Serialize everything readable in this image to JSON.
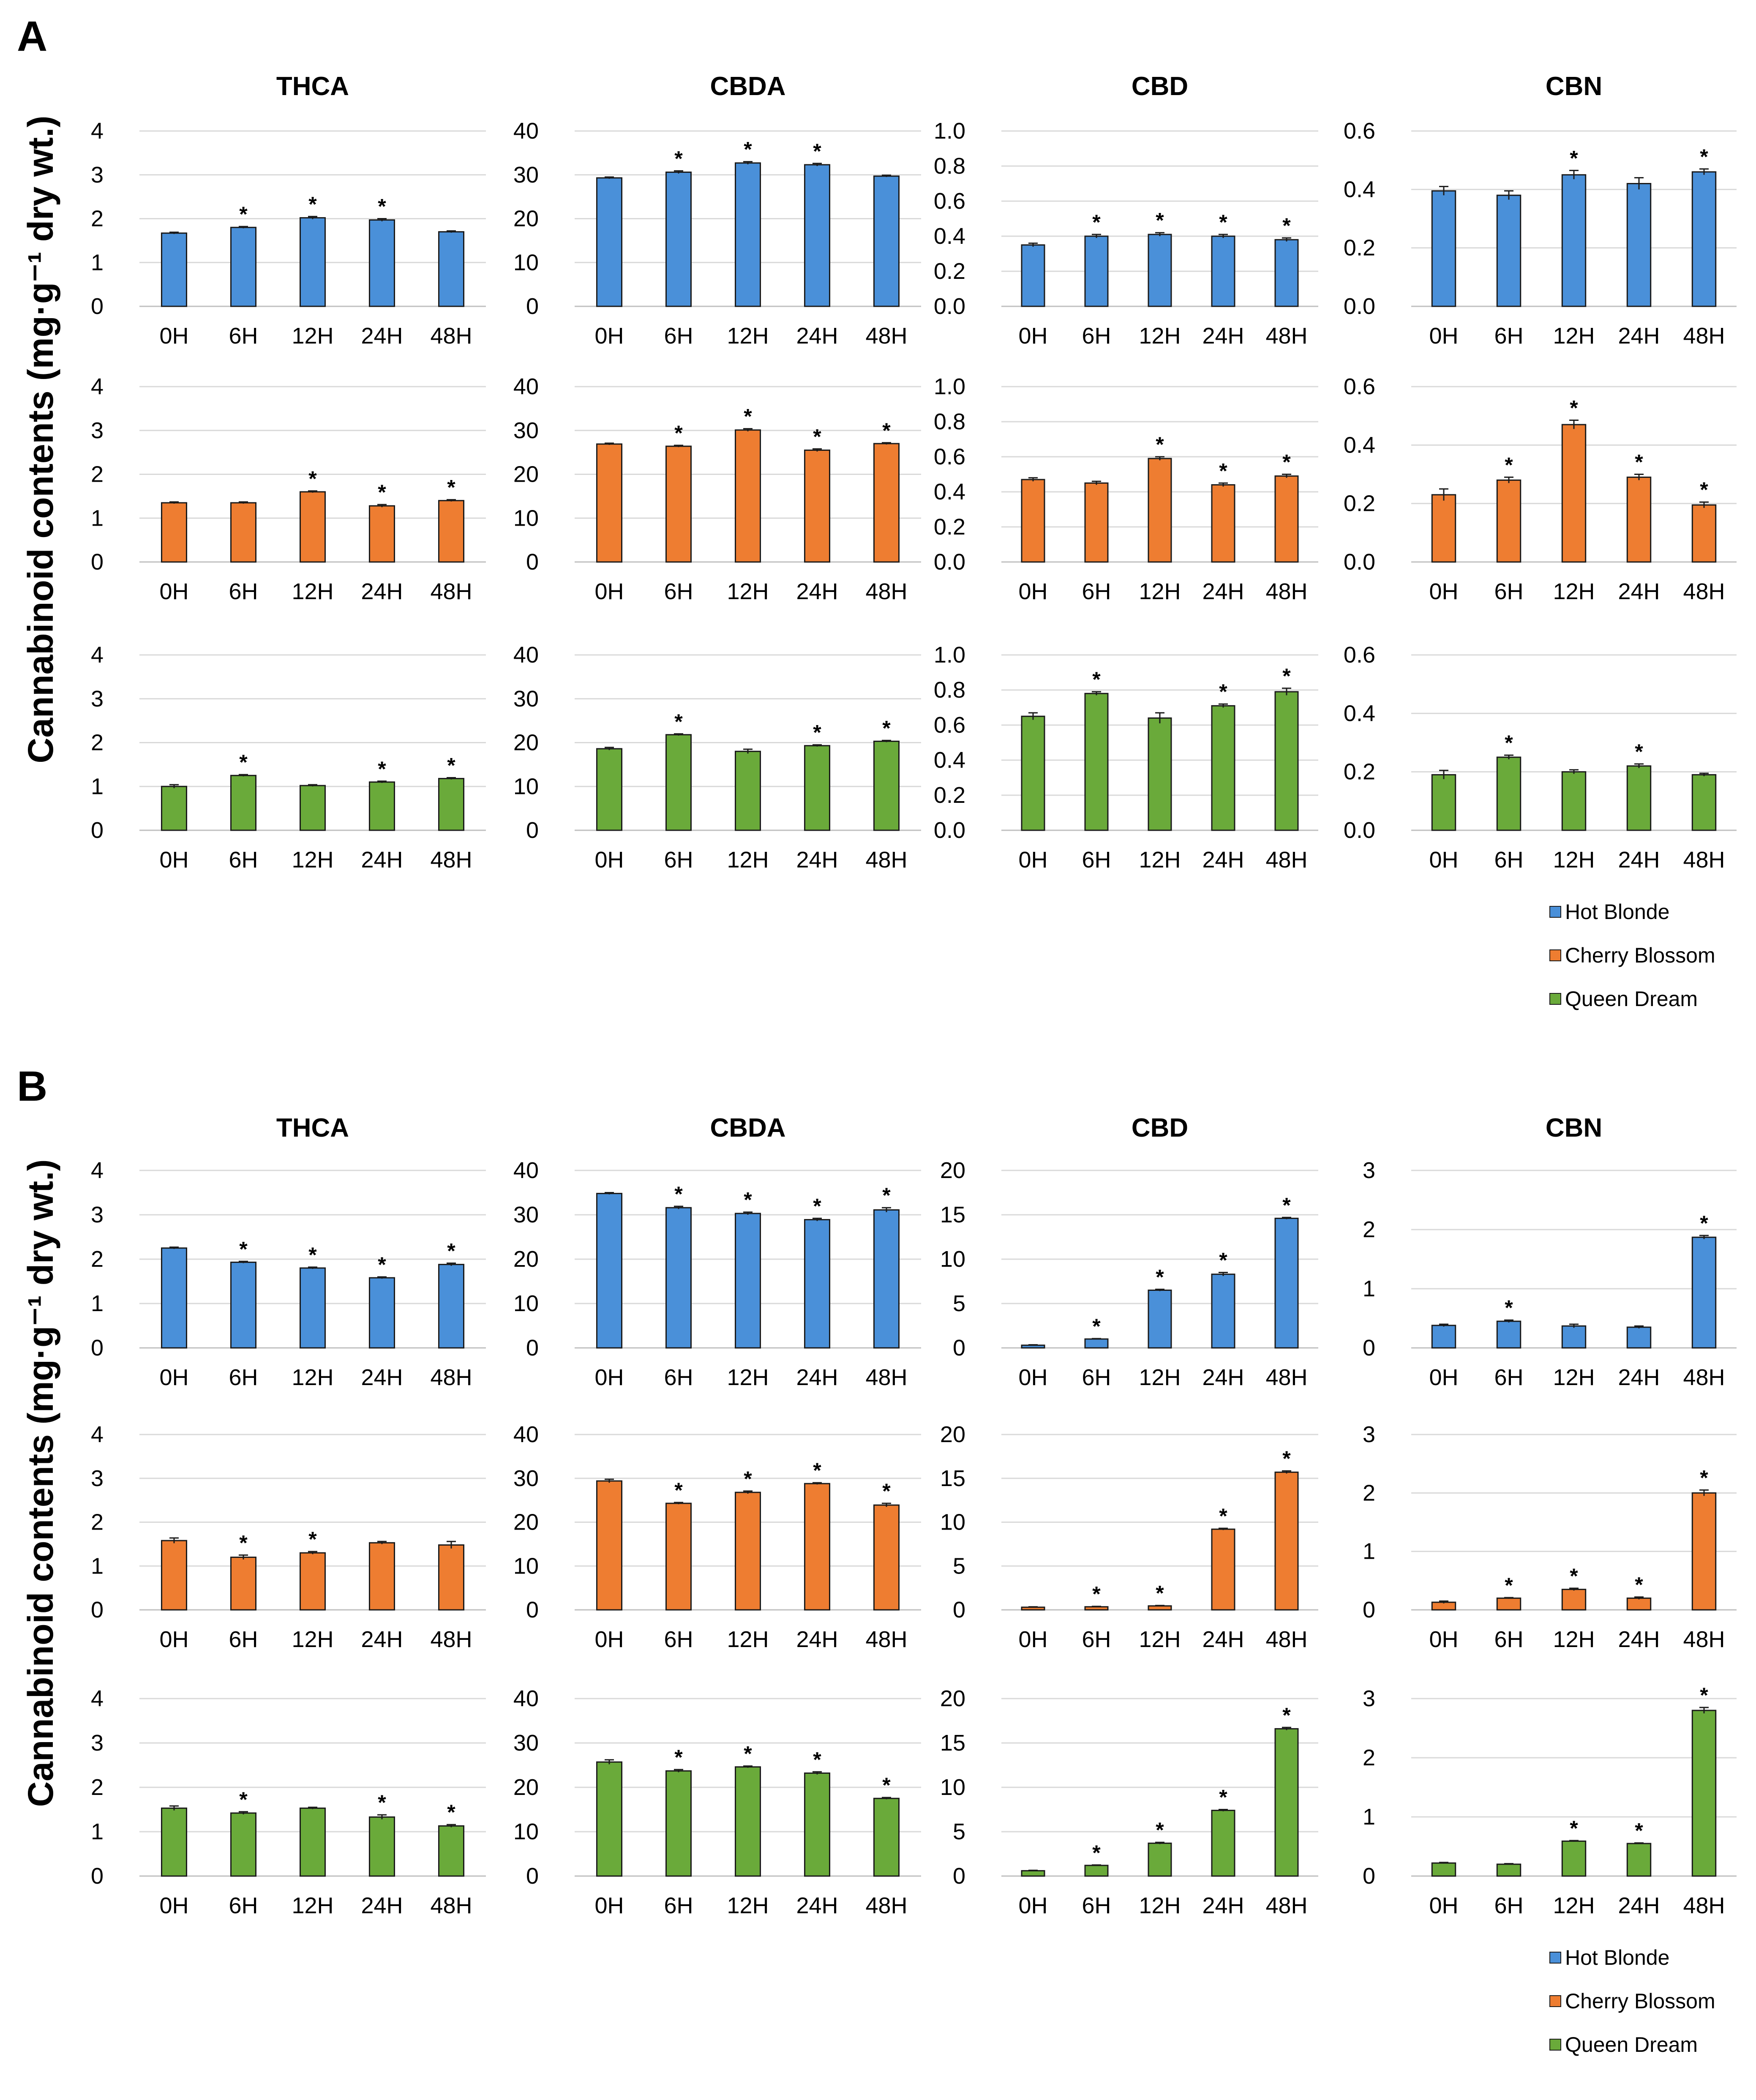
{
  "panels": [
    {
      "label": "A",
      "y_label": "Cannabinoid contents (mg·g⁻¹ dry wt.)"
    },
    {
      "label": "B",
      "y_label": "Cannabinoid contents (mg·g⁻¹ dry wt.)"
    }
  ],
  "legend": {
    "items": [
      {
        "name": "Hot Blonde",
        "color": "#4a90d9"
      },
      {
        "name": "Cherry Blossom",
        "color": "#ee7d31"
      },
      {
        "name": "Queen Dream",
        "color": "#6aaa3a"
      }
    ]
  },
  "chart_data": [
    {
      "type": "bar",
      "panel": "A",
      "title": "THCA",
      "series": "Hot Blonde",
      "categories": [
        "0H",
        "6H",
        "12H",
        "24H",
        "48H"
      ],
      "values": [
        1.67,
        1.8,
        2.02,
        1.97,
        1.7
      ],
      "errors": [
        0.02,
        0.02,
        0.03,
        0.03,
        0.02
      ],
      "significant": [
        false,
        true,
        true,
        true,
        false
      ],
      "ylim": [
        0,
        4
      ],
      "yticks": [
        "0",
        "1",
        "2",
        "3",
        "4"
      ]
    },
    {
      "type": "bar",
      "panel": "A",
      "title": "CBDA",
      "series": "Hot Blonde",
      "categories": [
        "0H",
        "6H",
        "12H",
        "24H",
        "48H"
      ],
      "values": [
        29.3,
        30.6,
        32.7,
        32.3,
        29.7
      ],
      "errors": [
        0.2,
        0.3,
        0.3,
        0.3,
        0.2
      ],
      "significant": [
        false,
        true,
        true,
        true,
        false
      ],
      "ylim": [
        0,
        40
      ],
      "yticks": [
        "0",
        "10",
        "20",
        "30",
        "40"
      ]
    },
    {
      "type": "bar",
      "panel": "A",
      "title": "CBD",
      "series": "Hot Blonde",
      "categories": [
        "0H",
        "6H",
        "12H",
        "24H",
        "48H"
      ],
      "values": [
        0.35,
        0.4,
        0.41,
        0.4,
        0.38
      ],
      "errors": [
        0.01,
        0.01,
        0.01,
        0.01,
        0.01
      ],
      "significant": [
        false,
        true,
        true,
        true,
        true
      ],
      "ylim": [
        0,
        1
      ],
      "yticks": [
        "0.0",
        "0.2",
        "0.4",
        "0.6",
        "0.8",
        "1.0"
      ]
    },
    {
      "type": "bar",
      "panel": "A",
      "title": "CBN",
      "series": "Hot Blonde",
      "categories": [
        "0H",
        "6H",
        "12H",
        "24H",
        "48H"
      ],
      "values": [
        0.395,
        0.38,
        0.45,
        0.42,
        0.46
      ],
      "errors": [
        0.015,
        0.015,
        0.015,
        0.02,
        0.01
      ],
      "significant": [
        false,
        false,
        true,
        false,
        true
      ],
      "ylim": [
        0,
        0.6
      ],
      "yticks": [
        "0.0",
        "0.2",
        "0.4",
        "0.6"
      ]
    },
    {
      "type": "bar",
      "panel": "A",
      "title": "THCA",
      "series": "Cherry Blossom",
      "categories": [
        "0H",
        "6H",
        "12H",
        "24H",
        "48H"
      ],
      "values": [
        1.35,
        1.35,
        1.6,
        1.28,
        1.4
      ],
      "errors": [
        0.02,
        0.02,
        0.02,
        0.03,
        0.02
      ],
      "significant": [
        false,
        false,
        true,
        true,
        true
      ],
      "ylim": [
        0,
        4
      ],
      "yticks": [
        "0",
        "1",
        "2",
        "3",
        "4"
      ]
    },
    {
      "type": "bar",
      "panel": "A",
      "title": "CBDA",
      "series": "Cherry Blossom",
      "categories": [
        "0H",
        "6H",
        "12H",
        "24H",
        "48H"
      ],
      "values": [
        26.9,
        26.4,
        30.1,
        25.5,
        27.0
      ],
      "errors": [
        0.2,
        0.2,
        0.3,
        0.3,
        0.2
      ],
      "significant": [
        false,
        true,
        true,
        true,
        true
      ],
      "ylim": [
        0,
        40
      ],
      "yticks": [
        "0",
        "10",
        "20",
        "30",
        "40"
      ]
    },
    {
      "type": "bar",
      "panel": "A",
      "title": "CBD",
      "series": "Cherry Blossom",
      "categories": [
        "0H",
        "6H",
        "12H",
        "24H",
        "48H"
      ],
      "values": [
        0.47,
        0.45,
        0.59,
        0.44,
        0.49
      ],
      "errors": [
        0.01,
        0.01,
        0.01,
        0.01,
        0.01
      ],
      "significant": [
        false,
        false,
        true,
        true,
        true
      ],
      "ylim": [
        0,
        1
      ],
      "yticks": [
        "0.0",
        "0.2",
        "0.4",
        "0.6",
        "0.8",
        "1.0"
      ]
    },
    {
      "type": "bar",
      "panel": "A",
      "title": "CBN",
      "series": "Cherry Blossom",
      "categories": [
        "0H",
        "6H",
        "12H",
        "24H",
        "48H"
      ],
      "values": [
        0.23,
        0.28,
        0.47,
        0.29,
        0.195
      ],
      "errors": [
        0.02,
        0.01,
        0.015,
        0.01,
        0.01
      ],
      "significant": [
        false,
        true,
        true,
        true,
        true
      ],
      "ylim": [
        0,
        0.6
      ],
      "yticks": [
        "0.0",
        "0.2",
        "0.4",
        "0.6"
      ]
    },
    {
      "type": "bar",
      "panel": "A",
      "title": "THCA",
      "series": "Queen Dream",
      "categories": [
        "0H",
        "6H",
        "12H",
        "24H",
        "48H"
      ],
      "values": [
        1.0,
        1.25,
        1.02,
        1.1,
        1.18
      ],
      "errors": [
        0.04,
        0.02,
        0.02,
        0.02,
        0.02
      ],
      "significant": [
        false,
        true,
        false,
        true,
        true
      ],
      "ylim": [
        0,
        4
      ],
      "yticks": [
        "0",
        "1",
        "2",
        "3",
        "4"
      ]
    },
    {
      "type": "bar",
      "panel": "A",
      "title": "CBDA",
      "series": "Queen Dream",
      "categories": [
        "0H",
        "6H",
        "12H",
        "24H",
        "48H"
      ],
      "values": [
        18.6,
        21.8,
        18.0,
        19.3,
        20.3
      ],
      "errors": [
        0.3,
        0.2,
        0.5,
        0.2,
        0.2
      ],
      "significant": [
        false,
        true,
        false,
        true,
        true
      ],
      "ylim": [
        0,
        40
      ],
      "yticks": [
        "0",
        "10",
        "20",
        "30",
        "40"
      ]
    },
    {
      "type": "bar",
      "panel": "A",
      "title": "CBD",
      "series": "Queen Dream",
      "categories": [
        "0H",
        "6H",
        "12H",
        "24H",
        "48H"
      ],
      "values": [
        0.65,
        0.78,
        0.64,
        0.71,
        0.79
      ],
      "errors": [
        0.02,
        0.01,
        0.03,
        0.01,
        0.02
      ],
      "significant": [
        false,
        true,
        false,
        true,
        true
      ],
      "ylim": [
        0,
        1
      ],
      "yticks": [
        "0.0",
        "0.2",
        "0.4",
        "0.6",
        "0.8",
        "1.0"
      ]
    },
    {
      "type": "bar",
      "panel": "A",
      "title": "CBN",
      "series": "Queen Dream",
      "categories": [
        "0H",
        "6H",
        "12H",
        "24H",
        "48H"
      ],
      "values": [
        0.19,
        0.25,
        0.2,
        0.22,
        0.19
      ],
      "errors": [
        0.015,
        0.007,
        0.007,
        0.007,
        0.005
      ],
      "significant": [
        false,
        true,
        false,
        true,
        false
      ],
      "ylim": [
        0,
        0.6
      ],
      "yticks": [
        "0.0",
        "0.2",
        "0.4",
        "0.6"
      ]
    },
    {
      "type": "bar",
      "panel": "B",
      "title": "THCA",
      "series": "Hot Blonde",
      "categories": [
        "0H",
        "6H",
        "12H",
        "24H",
        "48H"
      ],
      "values": [
        2.25,
        1.93,
        1.8,
        1.58,
        1.88
      ],
      "errors": [
        0.02,
        0.02,
        0.02,
        0.02,
        0.03
      ],
      "significant": [
        false,
        true,
        true,
        true,
        true
      ],
      "ylim": [
        0,
        4
      ],
      "yticks": [
        "0",
        "1",
        "2",
        "3",
        "4"
      ]
    },
    {
      "type": "bar",
      "panel": "B",
      "title": "CBDA",
      "series": "Hot Blonde",
      "categories": [
        "0H",
        "6H",
        "12H",
        "24H",
        "48H"
      ],
      "values": [
        34.8,
        31.6,
        30.3,
        28.9,
        31.1
      ],
      "errors": [
        0.2,
        0.3,
        0.3,
        0.3,
        0.5
      ],
      "significant": [
        false,
        true,
        true,
        true,
        true
      ],
      "ylim": [
        0,
        40
      ],
      "yticks": [
        "0",
        "10",
        "20",
        "30",
        "40"
      ]
    },
    {
      "type": "bar",
      "panel": "B",
      "title": "CBD",
      "series": "Hot Blonde",
      "categories": [
        "0H",
        "6H",
        "12H",
        "24H",
        "48H"
      ],
      "values": [
        0.3,
        1.0,
        6.5,
        8.3,
        14.6
      ],
      "errors": [
        0.05,
        0.05,
        0.1,
        0.2,
        0.1
      ],
      "significant": [
        false,
        true,
        true,
        true,
        true
      ],
      "ylim": [
        0,
        20
      ],
      "yticks": [
        "0",
        "5",
        "10",
        "15",
        "20"
      ]
    },
    {
      "type": "bar",
      "panel": "B",
      "title": "CBN",
      "series": "Hot Blonde",
      "categories": [
        "0H",
        "6H",
        "12H",
        "24H",
        "48H"
      ],
      "values": [
        0.38,
        0.45,
        0.37,
        0.35,
        1.87
      ],
      "errors": [
        0.02,
        0.02,
        0.03,
        0.02,
        0.03
      ],
      "significant": [
        false,
        true,
        false,
        false,
        true
      ],
      "ylim": [
        0,
        3
      ],
      "yticks": [
        "0",
        "1",
        "2",
        "3"
      ]
    },
    {
      "type": "bar",
      "panel": "B",
      "title": "THCA",
      "series": "Cherry Blossom",
      "categories": [
        "0H",
        "6H",
        "12H",
        "24H",
        "48H"
      ],
      "values": [
        1.58,
        1.2,
        1.3,
        1.53,
        1.48
      ],
      "errors": [
        0.06,
        0.05,
        0.03,
        0.03,
        0.08
      ],
      "significant": [
        false,
        true,
        true,
        false,
        false
      ],
      "ylim": [
        0,
        4
      ],
      "yticks": [
        "0",
        "1",
        "2",
        "3",
        "4"
      ]
    },
    {
      "type": "bar",
      "panel": "B",
      "title": "CBDA",
      "series": "Cherry Blossom",
      "categories": [
        "0H",
        "6H",
        "12H",
        "24H",
        "48H"
      ],
      "values": [
        29.4,
        24.3,
        26.8,
        28.8,
        23.9
      ],
      "errors": [
        0.4,
        0.2,
        0.3,
        0.2,
        0.4
      ],
      "significant": [
        false,
        true,
        true,
        true,
        true
      ],
      "ylim": [
        0,
        40
      ],
      "yticks": [
        "0",
        "10",
        "20",
        "30",
        "40"
      ]
    },
    {
      "type": "bar",
      "panel": "B",
      "title": "CBD",
      "series": "Cherry Blossom",
      "categories": [
        "0H",
        "6H",
        "12H",
        "24H",
        "48H"
      ],
      "values": [
        0.3,
        0.35,
        0.45,
        9.2,
        15.7
      ],
      "errors": [
        0.05,
        0.05,
        0.05,
        0.1,
        0.15
      ],
      "significant": [
        false,
        true,
        true,
        true,
        true
      ],
      "ylim": [
        0,
        20
      ],
      "yticks": [
        "0",
        "5",
        "10",
        "15",
        "20"
      ]
    },
    {
      "type": "bar",
      "panel": "B",
      "title": "CBN",
      "series": "Cherry Blossom",
      "categories": [
        "0H",
        "6H",
        "12H",
        "24H",
        "48H"
      ],
      "values": [
        0.13,
        0.2,
        0.35,
        0.2,
        2.0
      ],
      "errors": [
        0.02,
        0.01,
        0.02,
        0.02,
        0.05
      ],
      "significant": [
        false,
        true,
        true,
        true,
        true
      ],
      "ylim": [
        0,
        3
      ],
      "yticks": [
        "0",
        "1",
        "2",
        "3"
      ]
    },
    {
      "type": "bar",
      "panel": "B",
      "title": "THCA",
      "series": "Queen Dream",
      "categories": [
        "0H",
        "6H",
        "12H",
        "24H",
        "48H"
      ],
      "values": [
        1.53,
        1.42,
        1.53,
        1.33,
        1.13
      ],
      "errors": [
        0.05,
        0.03,
        0.02,
        0.05,
        0.03
      ],
      "significant": [
        false,
        true,
        false,
        true,
        true
      ],
      "ylim": [
        0,
        4
      ],
      "yticks": [
        "0",
        "1",
        "2",
        "3",
        "4"
      ]
    },
    {
      "type": "bar",
      "panel": "B",
      "title": "CBDA",
      "series": "Queen Dream",
      "categories": [
        "0H",
        "6H",
        "12H",
        "24H",
        "48H"
      ],
      "values": [
        25.7,
        23.7,
        24.6,
        23.2,
        17.5
      ],
      "errors": [
        0.5,
        0.3,
        0.2,
        0.3,
        0.2
      ],
      "significant": [
        false,
        true,
        true,
        true,
        true
      ],
      "ylim": [
        0,
        40
      ],
      "yticks": [
        "0",
        "10",
        "20",
        "30",
        "40"
      ]
    },
    {
      "type": "bar",
      "panel": "B",
      "title": "CBD",
      "series": "Queen Dream",
      "categories": [
        "0H",
        "6H",
        "12H",
        "24H",
        "48H"
      ],
      "values": [
        0.6,
        1.2,
        3.7,
        7.4,
        16.6
      ],
      "errors": [
        0.05,
        0.05,
        0.1,
        0.1,
        0.15
      ],
      "significant": [
        false,
        true,
        true,
        true,
        true
      ],
      "ylim": [
        0,
        20
      ],
      "yticks": [
        "0",
        "5",
        "10",
        "15",
        "20"
      ]
    },
    {
      "type": "bar",
      "panel": "B",
      "title": "CBN",
      "series": "Queen Dream",
      "categories": [
        "0H",
        "6H",
        "12H",
        "24H",
        "48H"
      ],
      "values": [
        0.22,
        0.2,
        0.59,
        0.55,
        2.8
      ],
      "errors": [
        0.01,
        0.01,
        0.01,
        0.01,
        0.05
      ],
      "significant": [
        false,
        false,
        true,
        true,
        true
      ],
      "ylim": [
        0,
        3
      ],
      "yticks": [
        "0",
        "1",
        "2",
        "3"
      ]
    }
  ]
}
